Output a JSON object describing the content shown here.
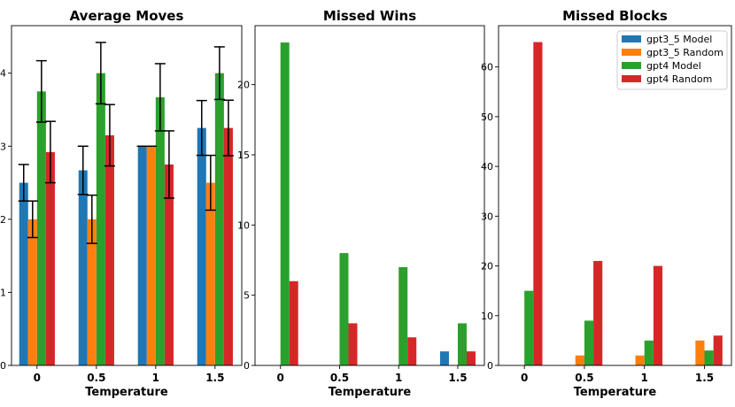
{
  "chart_data": [
    {
      "type": "bar",
      "title": "Average Moves",
      "xlabel": "Temperature",
      "ylabel": "",
      "categories": [
        "0",
        "0.5",
        "1",
        "1.5"
      ],
      "ylim": [
        0,
        4.65
      ],
      "yticks": [
        "0",
        "1",
        "2",
        "3",
        "4"
      ],
      "series": [
        {
          "name": "gpt3_5 Model",
          "values": [
            2.5,
            2.67,
            3.0,
            3.25
          ],
          "errors": [
            0.25,
            0.33,
            0.0,
            0.375
          ]
        },
        {
          "name": "gpt3_5 Random",
          "values": [
            2.0,
            2.0,
            3.0,
            2.5
          ],
          "errors": [
            0.25,
            0.33,
            0.0,
            0.375
          ]
        },
        {
          "name": "gpt4 Model",
          "values": [
            3.75,
            4.0,
            3.67,
            4.0
          ],
          "errors": [
            0.42,
            0.42,
            0.46,
            0.36
          ]
        },
        {
          "name": "gpt4 Random",
          "values": [
            2.92,
            3.15,
            2.75,
            3.25
          ],
          "errors": [
            0.42,
            0.42,
            0.46,
            0.38
          ]
        }
      ]
    },
    {
      "type": "bar",
      "title": "Missed Wins",
      "xlabel": "Temperature",
      "ylabel": "",
      "categories": [
        "0",
        "0.5",
        "1",
        "1.5"
      ],
      "ylim": [
        0,
        24.2
      ],
      "yticks": [
        "0",
        "5",
        "10",
        "15",
        "20"
      ],
      "series": [
        {
          "name": "gpt3_5 Model",
          "values": [
            0,
            0,
            0,
            1
          ]
        },
        {
          "name": "gpt3_5 Random",
          "values": [
            0,
            0,
            0,
            0
          ]
        },
        {
          "name": "gpt4 Model",
          "values": [
            23,
            8,
            7,
            3
          ]
        },
        {
          "name": "gpt4 Random",
          "values": [
            6,
            3,
            2,
            1
          ]
        }
      ]
    },
    {
      "type": "bar",
      "title": "Missed Blocks",
      "xlabel": "Temperature",
      "ylabel": "",
      "categories": [
        "0",
        "0.5",
        "1",
        "1.5"
      ],
      "ylim": [
        0,
        68.3
      ],
      "yticks": [
        "0",
        "10",
        "20",
        "30",
        "40",
        "50",
        "60"
      ],
      "series": [
        {
          "name": "gpt3_5 Model",
          "values": [
            0,
            0,
            0,
            0
          ]
        },
        {
          "name": "gpt3_5 Random",
          "values": [
            0,
            2,
            2,
            5
          ]
        },
        {
          "name": "gpt4 Model",
          "values": [
            15,
            9,
            5,
            3
          ]
        },
        {
          "name": "gpt4 Random",
          "values": [
            65,
            21,
            20,
            6
          ]
        }
      ],
      "legend": "top-right"
    }
  ],
  "colors": [
    "#1f77b4",
    "#ff7f0e",
    "#2ca02c",
    "#d62728"
  ]
}
